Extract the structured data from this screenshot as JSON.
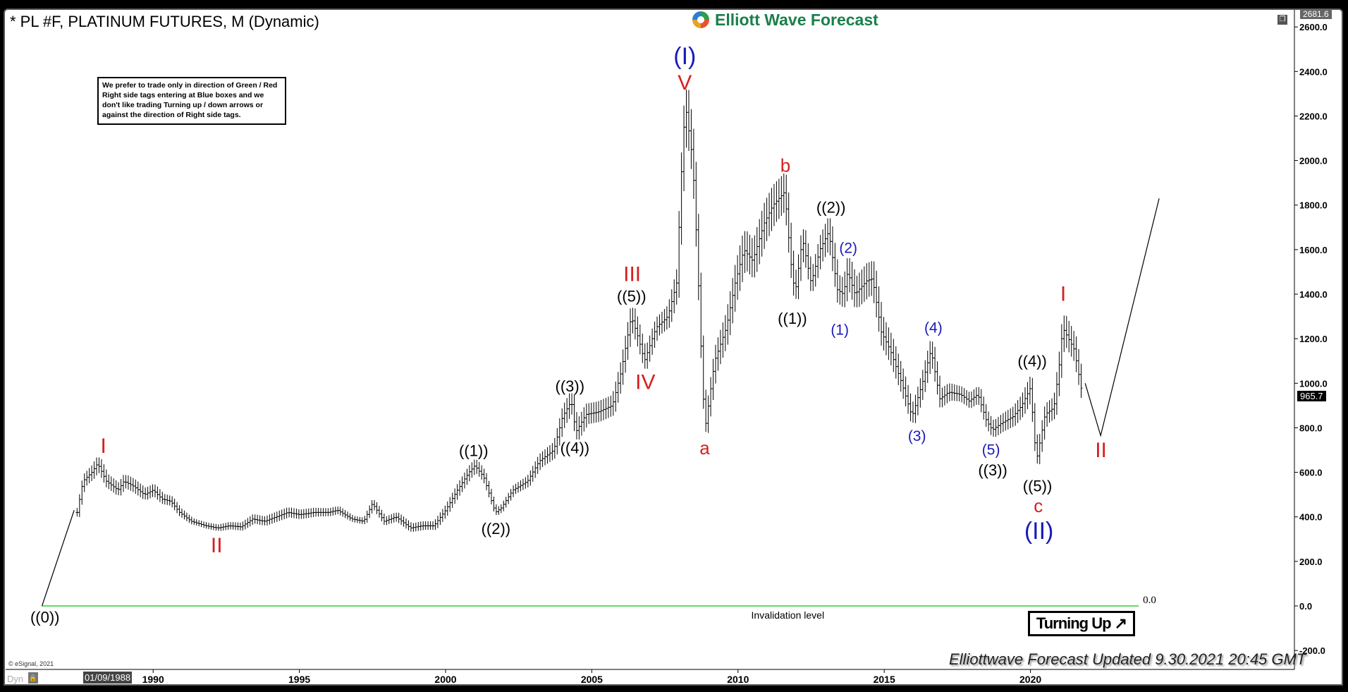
{
  "header": {
    "title": "* PL #F, PLATINUM FUTURES, M (Dynamic)",
    "logo_text": "Elliott Wave Forecast",
    "restore_icon": "window-restore-icon"
  },
  "note": "We prefer to trade only in direction of Green / Red Right side tags entering at Blue boxes and we don't like trading Turning up / down arrows or against the direction of Right side tags.",
  "badge": {
    "label": "Turning Up",
    "icon": "arrow-up-right-icon"
  },
  "footer": {
    "updated": "Elliottwave Forecast Updated 9.30.2021 20:45 GMT",
    "copyright": "© eSignal, 2021",
    "dyn": "Dyn",
    "cursor_date": "01/09/1988"
  },
  "price_tags": {
    "last": "965.7",
    "top": "2681.6"
  },
  "colors": {
    "red": "#d81e1e",
    "blue": "#1a1aba",
    "black": "#000000",
    "invalidation": "#33cc33",
    "logo": "#1a7f4b"
  },
  "chart_data": {
    "type": "ohlc-bar",
    "title": "* PL #F, PLATINUM FUTURES, M (Dynamic)",
    "ylim": [
      -200,
      2681.6
    ],
    "yticks": [
      "-200.0",
      "0.0",
      "200.0",
      "400.0",
      "600.0",
      "800.0",
      "1000.0",
      "1200.0",
      "1400.0",
      "1600.0",
      "1800.0",
      "2000.0",
      "2200.0",
      "2400.0",
      "2600.0"
    ],
    "xticks": [
      "1990",
      "1995",
      "2000",
      "2005",
      "2010",
      "2015",
      "2020"
    ],
    "grid": false,
    "last_price": 965.7,
    "price_path": [
      [
        1987.4,
        420
      ],
      [
        1987.6,
        560
      ],
      [
        1987.9,
        600
      ],
      [
        1988.1,
        640
      ],
      [
        1988.4,
        560
      ],
      [
        1988.8,
        520
      ],
      [
        1989.0,
        560
      ],
      [
        1989.3,
        540
      ],
      [
        1989.7,
        500
      ],
      [
        1990.0,
        520
      ],
      [
        1990.3,
        480
      ],
      [
        1990.6,
        470
      ],
      [
        1990.9,
        420
      ],
      [
        1991.3,
        380
      ],
      [
        1991.8,
        360
      ],
      [
        1992.2,
        350
      ],
      [
        1992.6,
        360
      ],
      [
        1993.0,
        355
      ],
      [
        1993.4,
        390
      ],
      [
        1993.8,
        380
      ],
      [
        1994.2,
        400
      ],
      [
        1994.6,
        420
      ],
      [
        1995.0,
        410
      ],
      [
        1995.5,
        420
      ],
      [
        1996.0,
        420
      ],
      [
        1996.3,
        430
      ],
      [
        1996.8,
        390
      ],
      [
        1997.2,
        380
      ],
      [
        1997.5,
        460
      ],
      [
        1997.9,
        380
      ],
      [
        1998.3,
        400
      ],
      [
        1998.8,
        350
      ],
      [
        1999.2,
        360
      ],
      [
        1999.6,
        360
      ],
      [
        2000.0,
        430
      ],
      [
        2000.4,
        520
      ],
      [
        2000.8,
        600
      ],
      [
        2001.0,
        630
      ],
      [
        2001.3,
        580
      ],
      [
        2001.7,
        420
      ],
      [
        2001.9,
        440
      ],
      [
        2002.3,
        520
      ],
      [
        2002.8,
        560
      ],
      [
        2003.2,
        650
      ],
      [
        2003.7,
        700
      ],
      [
        2004.0,
        850
      ],
      [
        2004.3,
        920
      ],
      [
        2004.45,
        780
      ],
      [
        2004.8,
        860
      ],
      [
        2005.2,
        870
      ],
      [
        2005.7,
        900
      ],
      [
        2006.0,
        1050
      ],
      [
        2006.35,
        1300
      ],
      [
        2006.6,
        1200
      ],
      [
        2006.8,
        1100
      ],
      [
        2007.2,
        1250
      ],
      [
        2007.6,
        1300
      ],
      [
        2007.9,
        1450
      ],
      [
        2008.1,
        2050
      ],
      [
        2008.2,
        2250
      ],
      [
        2008.45,
        2000
      ],
      [
        2008.6,
        1600
      ],
      [
        2008.8,
        950
      ],
      [
        2008.9,
        820
      ],
      [
        2009.2,
        1100
      ],
      [
        2009.6,
        1250
      ],
      [
        2009.9,
        1450
      ],
      [
        2010.2,
        1600
      ],
      [
        2010.5,
        1550
      ],
      [
        2010.9,
        1720
      ],
      [
        2011.2,
        1800
      ],
      [
        2011.6,
        1860
      ],
      [
        2011.8,
        1550
      ],
      [
        2011.95,
        1400
      ],
      [
        2012.2,
        1650
      ],
      [
        2012.5,
        1450
      ],
      [
        2012.8,
        1600
      ],
      [
        2013.1,
        1680
      ],
      [
        2013.4,
        1420
      ],
      [
        2013.6,
        1400
      ],
      [
        2013.75,
        1500
      ],
      [
        2014.0,
        1400
      ],
      [
        2014.4,
        1460
      ],
      [
        2014.6,
        1470
      ],
      [
        2014.9,
        1230
      ],
      [
        2015.2,
        1150
      ],
      [
        2015.6,
        1000
      ],
      [
        2015.95,
        850
      ],
      [
        2016.3,
        1000
      ],
      [
        2016.6,
        1150
      ],
      [
        2016.9,
        930
      ],
      [
        2017.2,
        960
      ],
      [
        2017.6,
        950
      ],
      [
        2017.9,
        920
      ],
      [
        2018.2,
        950
      ],
      [
        2018.5,
        830
      ],
      [
        2018.7,
        790
      ],
      [
        2019.0,
        820
      ],
      [
        2019.4,
        850
      ],
      [
        2019.7,
        900
      ],
      [
        2020.0,
        980
      ],
      [
        2020.2,
        650
      ],
      [
        2020.5,
        860
      ],
      [
        2020.8,
        890
      ],
      [
        2021.0,
        1100
      ],
      [
        2021.1,
        1250
      ],
      [
        2021.3,
        1200
      ],
      [
        2021.5,
        1150
      ],
      [
        2021.75,
        965.7
      ]
    ],
    "wave_lines": [
      {
        "points": [
          [
            1986.2,
            0
          ],
          [
            1987.3,
            430
          ]
        ]
      },
      {
        "points": [
          [
            2021.87,
            1000
          ],
          [
            2022.4,
            765
          ],
          [
            2024.4,
            1830
          ]
        ]
      }
    ],
    "invalidation": {
      "label": "Invalidation level",
      "value": 0,
      "value_label": "0.0",
      "from": 1986.2,
      "to": 2023.7
    },
    "labels": [
      {
        "text": "((0))",
        "color": "black",
        "year": 1986.3,
        "price": -50
      },
      {
        "text": "I",
        "color": "red",
        "year": 1988.3,
        "price": 721
      },
      {
        "text": "II",
        "color": "red",
        "year": 1992.17,
        "price": 274
      },
      {
        "text": "((1))",
        "color": "black",
        "year": 2000.96,
        "price": 698
      },
      {
        "text": "((2))",
        "color": "black",
        "year": 2001.72,
        "price": 347
      },
      {
        "text": "((3))",
        "color": "black",
        "year": 2004.25,
        "price": 988
      },
      {
        "text": "((4))",
        "color": "black",
        "year": 2004.42,
        "price": 710
      },
      {
        "text": "((5))",
        "color": "black",
        "year": 2006.36,
        "price": 1397
      },
      {
        "text": "III",
        "color": "red",
        "year": 2006.38,
        "price": 1485
      },
      {
        "text": "IV",
        "color": "red",
        "year": 2006.83,
        "price": 1007
      },
      {
        "text": "V",
        "color": "red",
        "year": 2008.18,
        "price": 2357
      },
      {
        "text": "(I)",
        "color": "blue",
        "year": 2008.18,
        "price": 2465
      },
      {
        "text": "a",
        "color": "red",
        "year": 2008.86,
        "price": 710
      },
      {
        "text": "b",
        "color": "red",
        "year": 2011.62,
        "price": 1979
      },
      {
        "text": "((1))",
        "color": "black",
        "year": 2011.86,
        "price": 1292
      },
      {
        "text": "((2))",
        "color": "black",
        "year": 2013.18,
        "price": 1790
      },
      {
        "text": "(1)",
        "color": "blue",
        "year": 2013.48,
        "price": 1242
      },
      {
        "text": "(2)",
        "color": "blue",
        "year": 2013.77,
        "price": 1609
      },
      {
        "text": "(3)",
        "color": "blue",
        "year": 2016.12,
        "price": 764
      },
      {
        "text": "(4)",
        "color": "blue",
        "year": 2016.68,
        "price": 1250
      },
      {
        "text": "(5)",
        "color": "blue",
        "year": 2018.65,
        "price": 702
      },
      {
        "text": "((3))",
        "color": "black",
        "year": 2018.71,
        "price": 610
      },
      {
        "text": "((4))",
        "color": "black",
        "year": 2020.06,
        "price": 1100
      },
      {
        "text": "((5))",
        "color": "black",
        "year": 2020.24,
        "price": 513
      },
      {
        "text": "c",
        "color": "red",
        "year": 2020.27,
        "price": 451
      },
      {
        "text": "(II)",
        "color": "blue",
        "year": 2020.29,
        "price": 363
      },
      {
        "text": "I",
        "color": "red",
        "year": 2021.12,
        "price": 1404
      },
      {
        "text": "II",
        "color": "red",
        "year": 2022.41,
        "price": 702
      }
    ]
  }
}
